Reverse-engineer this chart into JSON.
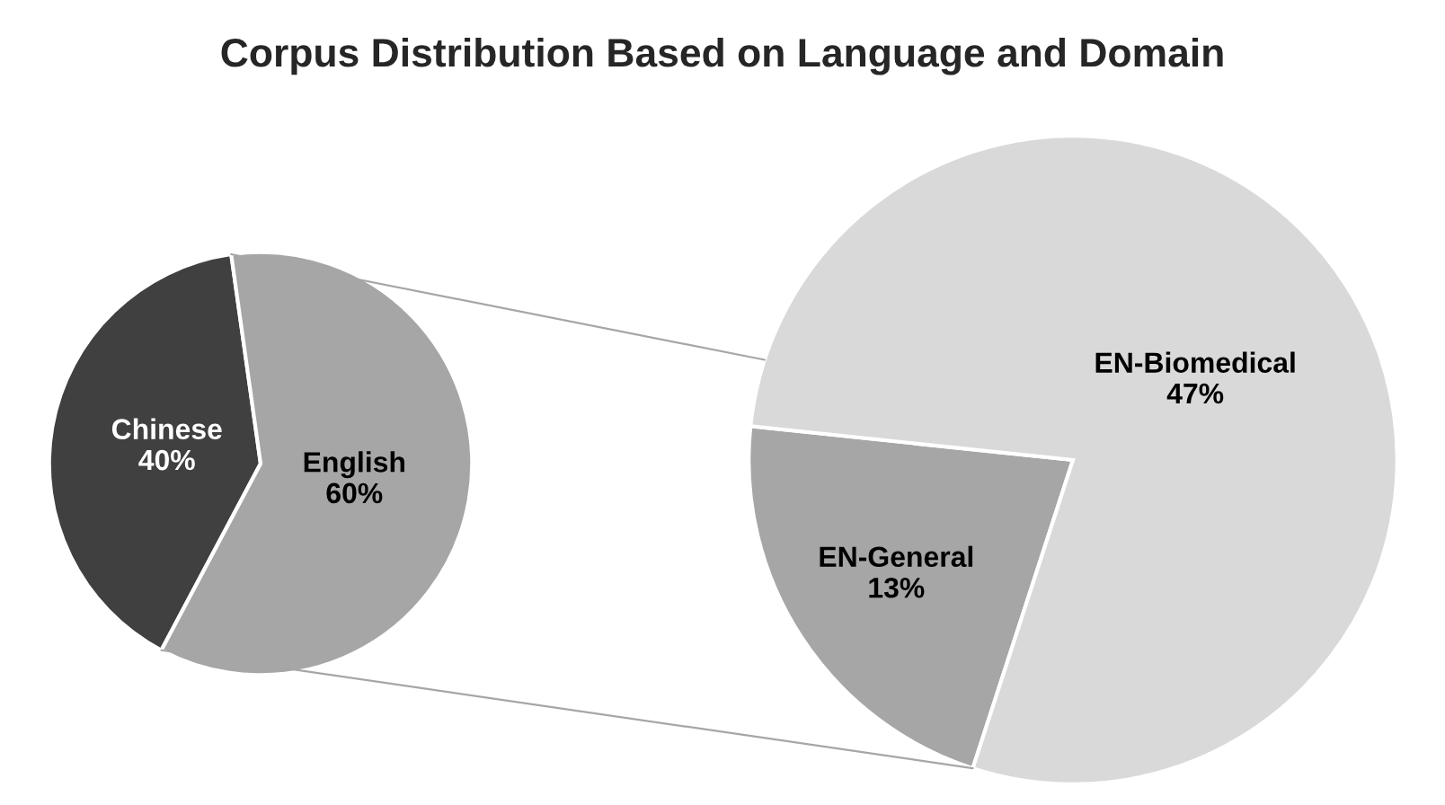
{
  "chart_data": [
    {
      "type": "pie",
      "title": "Corpus Distribution Based on Language and Domain",
      "categories": [
        "Chinese",
        "English"
      ],
      "values": [
        40,
        60
      ],
      "value_labels": [
        "40%",
        "60%"
      ],
      "colors": [
        "#404040",
        "#a6a6a6"
      ]
    },
    {
      "type": "pie",
      "categories": [
        "EN-General",
        "EN-Biomedical"
      ],
      "values": [
        13,
        47
      ],
      "value_labels": [
        "13%",
        "47%"
      ],
      "colors": [
        "#a6a6a6",
        "#d9d9d9"
      ]
    }
  ]
}
